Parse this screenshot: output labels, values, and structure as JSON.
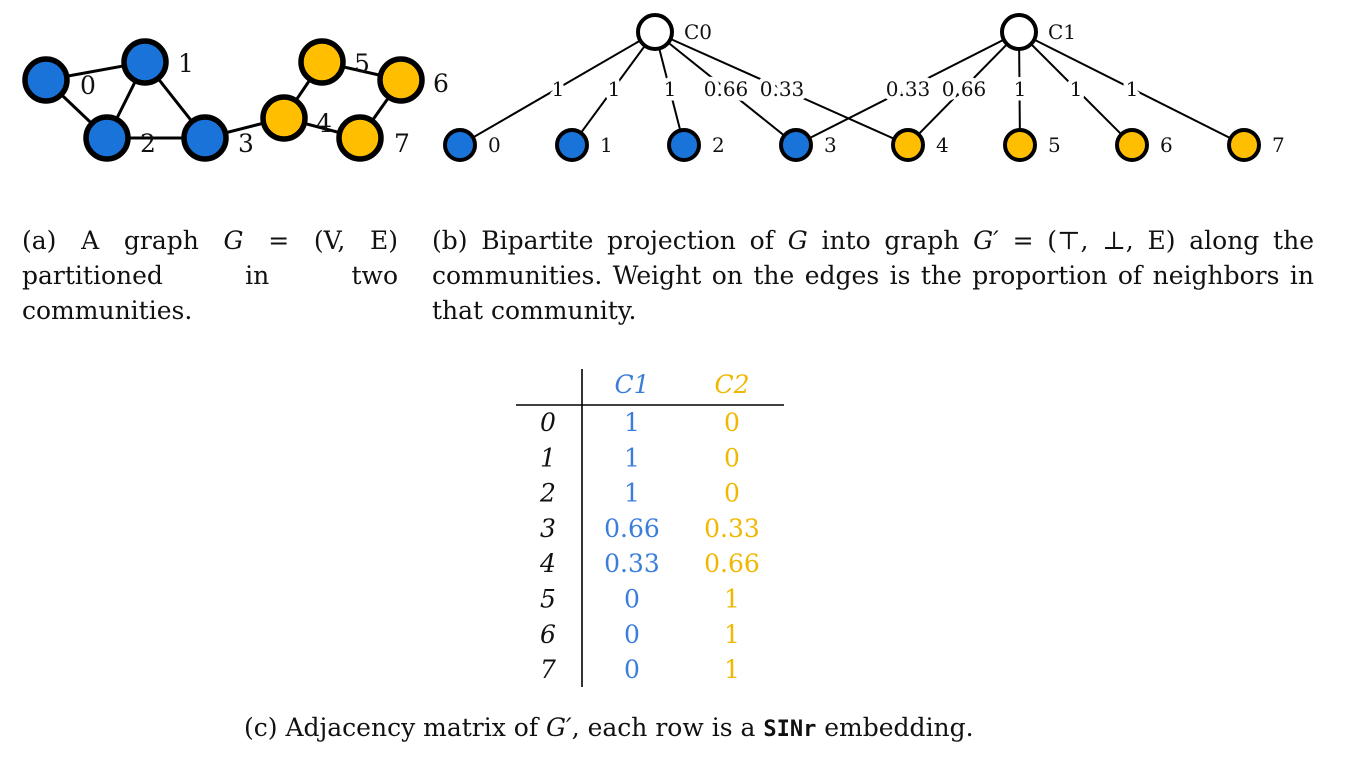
{
  "colors": {
    "blue": "#1a73d9",
    "yellow": "#ffbf00",
    "blue_text": "#3b7ed9",
    "yellow_text": "#f0b800"
  },
  "graph_a": {
    "nodes": [
      {
        "label": "0",
        "community": "blue"
      },
      {
        "label": "1",
        "community": "blue"
      },
      {
        "label": "2",
        "community": "blue"
      },
      {
        "label": "3",
        "community": "blue"
      },
      {
        "label": "4",
        "community": "yellow"
      },
      {
        "label": "5",
        "community": "yellow"
      },
      {
        "label": "6",
        "community": "yellow"
      },
      {
        "label": "7",
        "community": "yellow"
      }
    ],
    "edges": [
      [
        "0",
        "1"
      ],
      [
        "0",
        "2"
      ],
      [
        "1",
        "2"
      ],
      [
        "1",
        "3"
      ],
      [
        "2",
        "3"
      ],
      [
        "3",
        "4"
      ],
      [
        "4",
        "5"
      ],
      [
        "4",
        "7"
      ],
      [
        "5",
        "6"
      ],
      [
        "6",
        "7"
      ]
    ]
  },
  "graph_b": {
    "communities": [
      {
        "label": "C0"
      },
      {
        "label": "C1"
      }
    ],
    "nodes": [
      {
        "label": "0",
        "community": "blue"
      },
      {
        "label": "1",
        "community": "blue"
      },
      {
        "label": "2",
        "community": "blue"
      },
      {
        "label": "3",
        "community": "blue"
      },
      {
        "label": "4",
        "community": "yellow"
      },
      {
        "label": "5",
        "community": "yellow"
      },
      {
        "label": "6",
        "community": "yellow"
      },
      {
        "label": "7",
        "community": "yellow"
      }
    ],
    "edges": [
      {
        "from": "C0",
        "to": "0",
        "weight": "1"
      },
      {
        "from": "C0",
        "to": "1",
        "weight": "1"
      },
      {
        "from": "C0",
        "to": "2",
        "weight": "1"
      },
      {
        "from": "C0",
        "to": "3",
        "weight": "0.66"
      },
      {
        "from": "C0",
        "to": "4",
        "weight": "0.33"
      },
      {
        "from": "C1",
        "to": "3",
        "weight": "0.33"
      },
      {
        "from": "C1",
        "to": "4",
        "weight": "0.66"
      },
      {
        "from": "C1",
        "to": "5",
        "weight": "1"
      },
      {
        "from": "C1",
        "to": "6",
        "weight": "1"
      },
      {
        "from": "C1",
        "to": "7",
        "weight": "1"
      }
    ]
  },
  "captions": {
    "a": {
      "prefix": "(a) A graph ",
      "math_G": "G",
      "math_def": " = (V, E)",
      "rest": " partitioned in two communities."
    },
    "b": {
      "prefix": "(b) Bipartite projection of ",
      "math_G": "G",
      "mid": " into graph ",
      "math_Gp": "G′",
      "math_def": " = (⊤, ⊥, E)",
      "rest": " along the communities. Weight on the edges is the proportion of neighbors in that community."
    },
    "c": {
      "prefix": "(c) Adjacency matrix of ",
      "math_Gp": "G′",
      "mid": ", each row is a ",
      "code": "SINr",
      "rest": " embedding."
    }
  },
  "matrix": {
    "columns": [
      "C1",
      "C2"
    ],
    "rows": [
      {
        "label": "0",
        "c1": "1",
        "c2": "0"
      },
      {
        "label": "1",
        "c1": "1",
        "c2": "0"
      },
      {
        "label": "2",
        "c1": "1",
        "c2": "0"
      },
      {
        "label": "3",
        "c1": "0.66",
        "c2": "0.33"
      },
      {
        "label": "4",
        "c1": "0.33",
        "c2": "0.66"
      },
      {
        "label": "5",
        "c1": "0",
        "c2": "1"
      },
      {
        "label": "6",
        "c1": "0",
        "c2": "1"
      },
      {
        "label": "7",
        "c1": "0",
        "c2": "1"
      }
    ]
  }
}
